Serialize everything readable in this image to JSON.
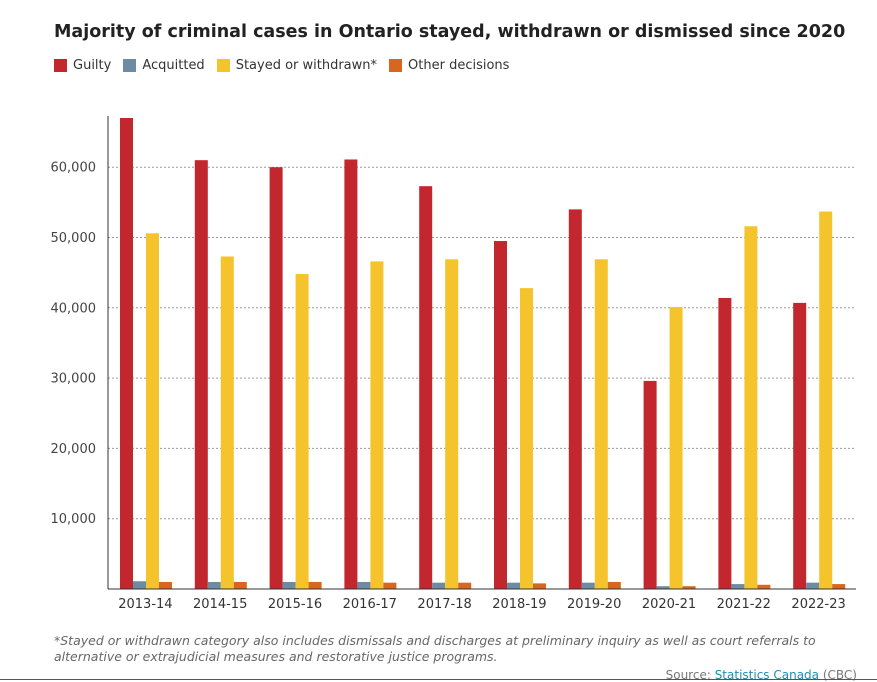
{
  "chart_data": {
    "type": "bar",
    "title": "Majority of criminal cases in Ontario stayed, withdrawn or dismissed since 2020",
    "categories": [
      "2013-14",
      "2014-15",
      "2015-16",
      "2016-17",
      "2017-18",
      "2018-19",
      "2019-20",
      "2020-21",
      "2021-22",
      "2022-23"
    ],
    "series": [
      {
        "name": "Guilty",
        "color": "#c1272d",
        "values": [
          67000,
          61000,
          60000,
          61100,
          57300,
          49500,
          54000,
          29600,
          41400,
          40700
        ]
      },
      {
        "name": "Acquitted",
        "color": "#6d8ca3",
        "values": [
          1100,
          1000,
          1000,
          1000,
          900,
          900,
          900,
          400,
          700,
          900
        ]
      },
      {
        "name": "Stayed or withdrawn*",
        "color": "#f5c32c",
        "values": [
          50600,
          47300,
          44800,
          46600,
          46900,
          42800,
          46900,
          40100,
          51600,
          53700
        ]
      },
      {
        "name": "Other decisions",
        "color": "#d9661f",
        "values": [
          1000,
          1000,
          1000,
          900,
          900,
          800,
          1000,
          400,
          600,
          700
        ]
      }
    ],
    "xlabel": "",
    "ylabel": "",
    "ylim": [
      0,
      67000
    ],
    "yticks": [
      10000,
      20000,
      30000,
      40000,
      50000,
      60000
    ],
    "ytick_labels": [
      "10,000",
      "20,000",
      "30,000",
      "40,000",
      "50,000",
      "60,000"
    ],
    "grid": "horizontal-dotted",
    "legend_position": "top-left"
  },
  "footnote": "*Stayed or withdrawn category also includes dismissals and discharges at preliminary inquiry as well as court referrals to alternative or extrajudicial measures and restorative justice programs.",
  "source": {
    "prefix": "Source: ",
    "link_text": "Statistics Canada",
    "suffix": " (CBC)"
  }
}
